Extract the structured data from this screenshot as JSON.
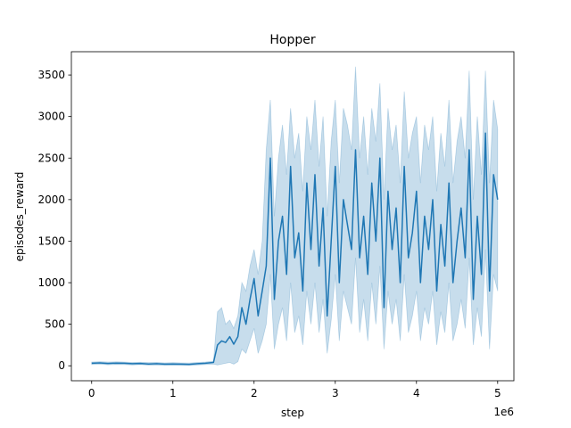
{
  "chart_data": {
    "type": "line",
    "title": "Hopper",
    "xlabel": "step",
    "ylabel": "episodes_reward",
    "x_offset_text": "1e6",
    "xlim": [
      -0.25,
      5.2
    ],
    "ylim": [
      -180,
      3780
    ],
    "xticks": [
      0,
      1,
      2,
      3,
      4,
      5
    ],
    "xtick_labels": [
      "0",
      "1",
      "2",
      "3",
      "4",
      "5"
    ],
    "yticks": [
      0,
      500,
      1000,
      1500,
      2000,
      2500,
      3000,
      3500
    ],
    "ytick_labels": [
      "0",
      "500",
      "1000",
      "1500",
      "2000",
      "2500",
      "3000",
      "3500"
    ],
    "grid": false,
    "color": "#1f77b4",
    "series": [
      {
        "x": [
          0.0,
          0.1,
          0.2,
          0.3,
          0.4,
          0.5,
          0.6,
          0.7,
          0.8,
          0.9,
          1.0,
          1.1,
          1.2,
          1.3,
          1.4,
          1.5,
          1.55,
          1.6,
          1.65,
          1.7,
          1.75,
          1.8,
          1.85,
          1.9,
          1.95,
          2.0,
          2.05,
          2.1,
          2.15,
          2.2,
          2.25,
          2.3,
          2.35,
          2.4,
          2.45,
          2.5,
          2.55,
          2.6,
          2.65,
          2.7,
          2.75,
          2.8,
          2.85,
          2.9,
          2.95,
          3.0,
          3.05,
          3.1,
          3.15,
          3.2,
          3.25,
          3.3,
          3.35,
          3.4,
          3.45,
          3.5,
          3.55,
          3.6,
          3.65,
          3.7,
          3.75,
          3.8,
          3.85,
          3.9,
          3.95,
          4.0,
          4.05,
          4.1,
          4.15,
          4.2,
          4.25,
          4.3,
          4.35,
          4.4,
          4.45,
          4.5,
          4.55,
          4.6,
          4.65,
          4.7,
          4.75,
          4.8,
          4.85,
          4.9,
          4.95,
          5.0
        ],
        "mean": [
          30,
          35,
          28,
          32,
          30,
          25,
          28,
          22,
          25,
          20,
          22,
          20,
          18,
          25,
          30,
          40,
          250,
          300,
          280,
          350,
          260,
          350,
          700,
          500,
          800,
          1050,
          600,
          900,
          1200,
          2500,
          800,
          1500,
          1800,
          1100,
          2400,
          1300,
          1600,
          900,
          2200,
          1400,
          2300,
          1200,
          1900,
          600,
          1500,
          2400,
          1000,
          2000,
          1700,
          1400,
          2600,
          1300,
          1800,
          1100,
          2200,
          1500,
          2500,
          700,
          2100,
          1400,
          1900,
          1000,
          2400,
          1300,
          1600,
          2100,
          1000,
          1800,
          1400,
          2000,
          900,
          1700,
          1200,
          2200,
          1000,
          1500,
          1900,
          1300,
          2600,
          800,
          1800,
          1100,
          2800,
          900,
          2300,
          2000
        ],
        "upper": [
          45,
          50,
          45,
          48,
          45,
          40,
          42,
          38,
          40,
          35,
          38,
          35,
          33,
          40,
          45,
          55,
          650,
          700,
          500,
          550,
          450,
          600,
          1000,
          900,
          1200,
          1400,
          1100,
          1500,
          2600,
          3200,
          1800,
          2500,
          2900,
          2300,
          3100,
          2500,
          2800,
          2100,
          3000,
          2600,
          3200,
          2400,
          3000,
          1800,
          2700,
          3200,
          2200,
          3100,
          2900,
          2600,
          3600,
          2500,
          3000,
          2300,
          3100,
          2700,
          3400,
          2000,
          3100,
          2600,
          2900,
          2200,
          3300,
          2500,
          2800,
          3000,
          2200,
          2900,
          2600,
          3000,
          2100,
          2800,
          2400,
          3200,
          2200,
          2700,
          3000,
          2500,
          3550,
          2000,
          3000,
          2300,
          3550,
          2200,
          3200,
          2850
        ],
        "lower": [
          15,
          20,
          12,
          16,
          15,
          10,
          14,
          8,
          10,
          5,
          8,
          5,
          3,
          10,
          15,
          20,
          10,
          20,
          30,
          40,
          20,
          50,
          200,
          150,
          300,
          450,
          150,
          300,
          500,
          1100,
          200,
          500,
          700,
          300,
          1000,
          400,
          600,
          250,
          900,
          500,
          1000,
          400,
          800,
          150,
          550,
          1100,
          300,
          900,
          700,
          500,
          1300,
          400,
          800,
          300,
          1000,
          500,
          1200,
          200,
          900,
          500,
          800,
          300,
          1100,
          400,
          600,
          900,
          300,
          700,
          500,
          900,
          250,
          650,
          400,
          1000,
          300,
          500,
          800,
          450,
          1300,
          250,
          700,
          350,
          1400,
          200,
          1100,
          900
        ]
      }
    ]
  }
}
